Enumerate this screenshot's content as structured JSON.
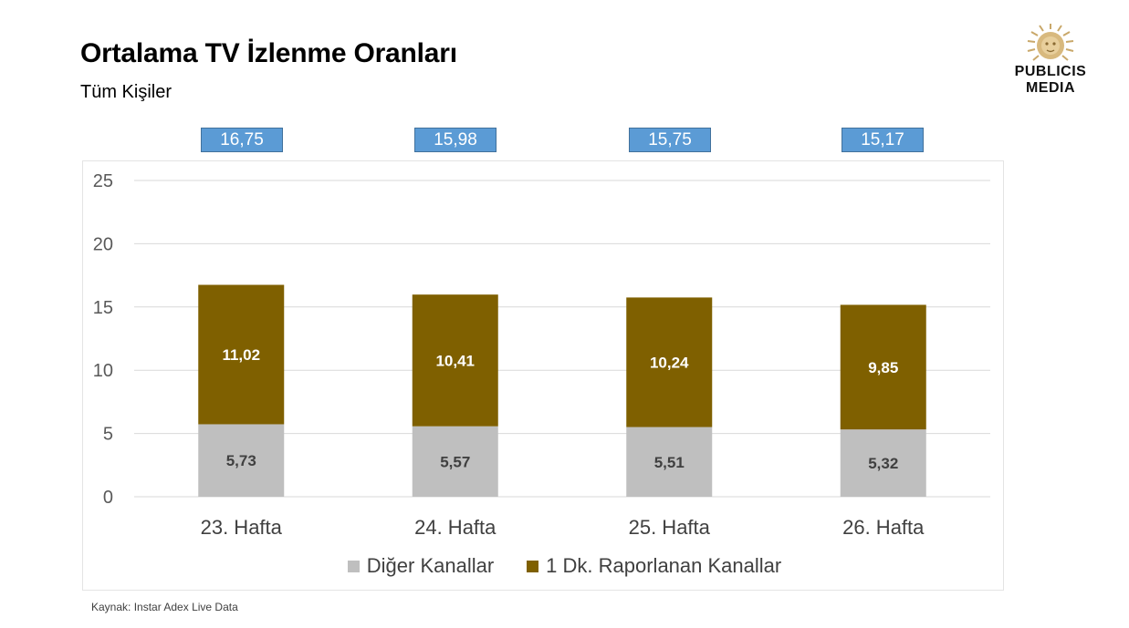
{
  "header": {
    "title": "Ortalama TV İzlenme Oranları",
    "subtitle": "Tüm Kişiler"
  },
  "logo": {
    "line1": "PUBLICIS",
    "line2": "MEDIA"
  },
  "totals": [
    "16,75",
    "15,98",
    "15,75",
    "15,17"
  ],
  "source": "Kaynak: Instar  Adex Live Data",
  "colors": {
    "series_other": "#bfbfbf",
    "series_reported": "#7f6000",
    "total_box": "#5b9bd5",
    "grid": "#d9d9d9"
  },
  "chart_data": {
    "type": "bar",
    "stacked": true,
    "categories": [
      "23. Hafta",
      "24. Hafta",
      "25. Hafta",
      "26. Hafta"
    ],
    "series": [
      {
        "name": "Diğer Kanallar",
        "values": [
          5.73,
          5.57,
          5.51,
          5.32
        ],
        "labels": [
          "5,73",
          "5,57",
          "5,51",
          "5,32"
        ],
        "color": "#bfbfbf"
      },
      {
        "name": "1 Dk. Raporlanan Kanallar",
        "values": [
          11.02,
          10.41,
          10.24,
          9.85
        ],
        "labels": [
          "11,02",
          "10,41",
          "10,24",
          "9,85"
        ],
        "color": "#7f6000"
      }
    ],
    "yticks": [
      0,
      5,
      10,
      15,
      20,
      25
    ],
    "ylim": [
      0,
      25
    ],
    "grid": true,
    "legend_position": "bottom"
  }
}
